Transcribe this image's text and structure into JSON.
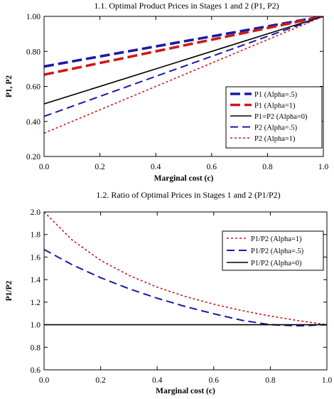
{
  "chart_data": [
    {
      "type": "line",
      "title": "1.1. Optimal Product Prices in Stages 1 and 2 (P1, P2)",
      "xlabel": "Marginal cost (c)",
      "ylabel": "P1, P2",
      "xlim": [
        0,
        1
      ],
      "ylim": [
        0.2,
        1.0
      ],
      "xticks": [
        "0.0",
        "0.2",
        "0.4",
        "0.6",
        "0.8",
        "1.0"
      ],
      "yticks": [
        "0.20",
        "0.40",
        "0.60",
        "0.80",
        "1.00"
      ],
      "legend_position": "right",
      "grid": false,
      "series": [
        {
          "name": "P1 (Alpha=.5)",
          "color": "#1a1aa8",
          "style": "thick-dash",
          "x": [
            0,
            1
          ],
          "y": [
            0.714,
            1.0
          ]
        },
        {
          "name": "P1 (Alpha=1)",
          "color": "#cc1a1a",
          "style": "thick-dash",
          "x": [
            0,
            1
          ],
          "y": [
            0.667,
            1.0
          ]
        },
        {
          "name": "P1=P2 (Alpha=0)",
          "color": "#000000",
          "style": "solid",
          "x": [
            0,
            1
          ],
          "y": [
            0.5,
            1.0
          ]
        },
        {
          "name": "P2 (Alpha=.5)",
          "color": "#1a1aa8",
          "style": "dash",
          "x": [
            0,
            1
          ],
          "y": [
            0.429,
            1.0
          ]
        },
        {
          "name": "P2 (Alpha=1)",
          "color": "#cc1a1a",
          "style": "dot",
          "x": [
            0,
            1
          ],
          "y": [
            0.333,
            1.0
          ]
        }
      ]
    },
    {
      "type": "line",
      "title": "1.2. Ratio of Optimal Prices in Stages 1 and 2 (P1/P2)",
      "xlabel": "Marginal cost (c)",
      "ylabel": "P1/P2",
      "xlim": [
        0,
        1
      ],
      "ylim": [
        0.6,
        2.0
      ],
      "xticks": [
        "0.0",
        "0.2",
        "0.4",
        "0.6",
        "0.8",
        "1.0"
      ],
      "yticks": [
        "0.6",
        "0.8",
        "1.0",
        "1.2",
        "1.4",
        "1.6",
        "1.8",
        "2.0"
      ],
      "legend_position": "right",
      "grid": false,
      "series": [
        {
          "name": "P1/P2 (Alpha=1)",
          "color": "#cc1a1a",
          "style": "dot",
          "x": [
            0,
            0.1,
            0.2,
            0.3,
            0.4,
            0.5,
            0.6,
            0.7,
            0.8,
            0.9,
            1.0
          ],
          "y": [
            2.0,
            1.75,
            1.571,
            1.438,
            1.333,
            1.25,
            1.182,
            1.125,
            1.077,
            1.036,
            1.0
          ]
        },
        {
          "name": "P1/P2 (Alpha=.5)",
          "color": "#1a1aa8",
          "style": "dash",
          "x": [
            0,
            0.1,
            0.2,
            0.3,
            0.4,
            0.5,
            0.6,
            0.7,
            0.8,
            0.9,
            1.0
          ],
          "y": [
            1.667,
            1.531,
            1.417,
            1.319,
            1.235,
            1.161,
            1.097,
            1.039,
            1.0,
            0.99,
            1.0
          ]
        },
        {
          "name": "P1/P2 (Alpha=0)",
          "color": "#000000",
          "style": "solid",
          "x": [
            0,
            1
          ],
          "y": [
            1.0,
            1.0
          ]
        }
      ]
    }
  ]
}
